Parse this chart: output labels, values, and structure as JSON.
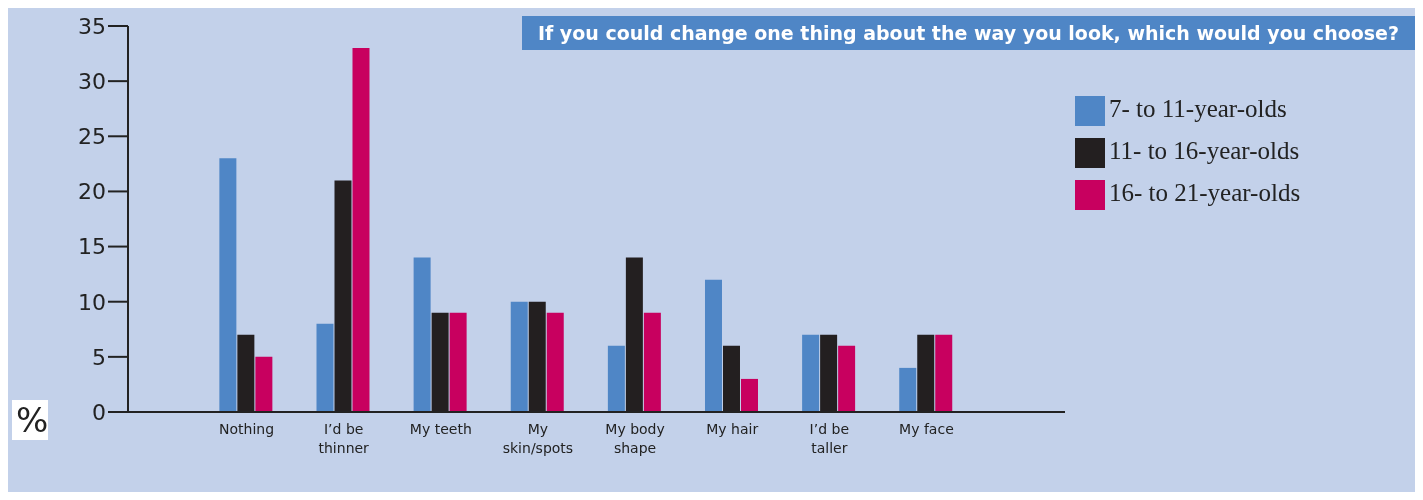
{
  "chart_data": {
    "type": "bar",
    "title": "If you could change one thing about the way you look, which would you choose?",
    "ylabel": "%",
    "categories": [
      "Nothing",
      "I’d be thinner",
      "My teeth",
      "My skin/spots",
      "My body shape",
      "My hair",
      "I’d be taller",
      "My face"
    ],
    "series": [
      {
        "name": "7- to 11-year-olds",
        "color": "#4f86c6",
        "values": [
          23,
          8,
          14,
          10,
          6,
          12,
          7,
          4
        ]
      },
      {
        "name": "11- to 16-year-olds",
        "color": "#231f20",
        "values": [
          7,
          21,
          9,
          10,
          14,
          6,
          7,
          7
        ]
      },
      {
        "name": "16- to 21-year-olds",
        "color": "#c8005f",
        "values": [
          5,
          33,
          9,
          9,
          9,
          3,
          6,
          7
        ]
      }
    ],
    "ylim": [
      0,
      35
    ],
    "yticks": [
      0,
      5,
      10,
      15,
      20,
      25,
      30,
      35
    ],
    "grid": false,
    "legend": "right"
  }
}
